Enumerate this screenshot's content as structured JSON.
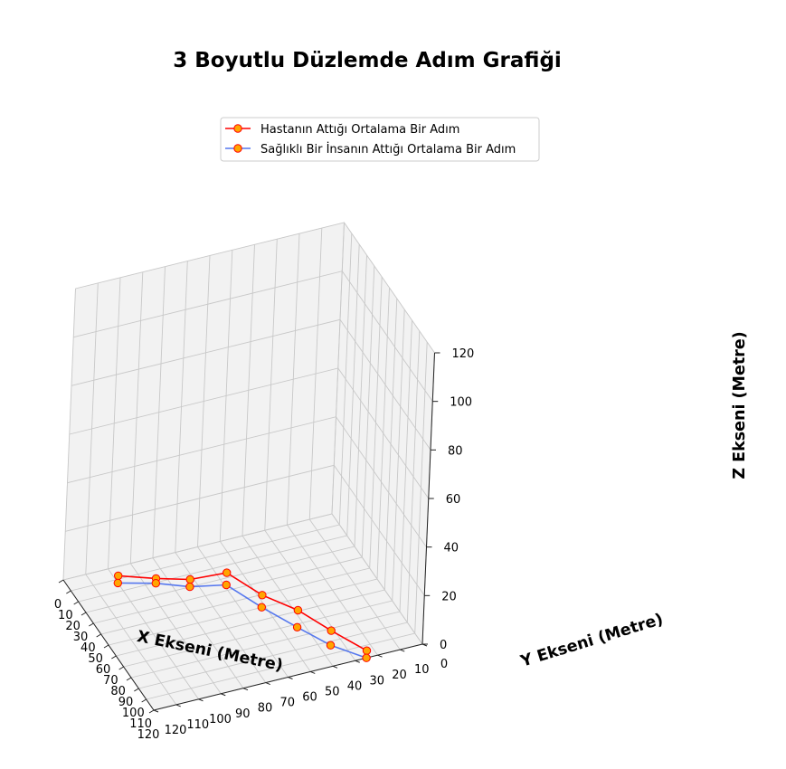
{
  "chart_data": {
    "type": "line3d",
    "title": "3 Boyutlu Düzlemde Adım Grafiği",
    "xlabel": "X Ekseni (Metre)",
    "ylabel": "Y Ekseni (Metre)",
    "zlabel": "Z Ekseni (Metre)",
    "xlim": [
      0,
      120
    ],
    "ylim": [
      0,
      120
    ],
    "zlim": [
      0,
      120
    ],
    "x_ticks": [
      "0",
      "10",
      "20",
      "30",
      "40",
      "50",
      "60",
      "70",
      "80",
      "90",
      "100",
      "110",
      "120"
    ],
    "y_ticks": [
      "0",
      "10",
      "20",
      "30",
      "40",
      "50",
      "60",
      "70",
      "80",
      "90",
      "100",
      "110",
      "120"
    ],
    "z_ticks": [
      "0",
      "20",
      "40",
      "60",
      "80",
      "100",
      "120"
    ],
    "grid": true,
    "legend_position": "top-center",
    "series": [
      {
        "name": "Hastanın Attığı Ortalama Bir Adım",
        "color": "#ff0000",
        "marker_face": "#ffa500",
        "marker_edge": "#ff0000",
        "points": [
          {
            "x": 13,
            "y": 100,
            "z": 3
          },
          {
            "x": 30,
            "y": 89,
            "z": 7
          },
          {
            "x": 45,
            "y": 79,
            "z": 11
          },
          {
            "x": 60,
            "y": 68,
            "z": 18
          },
          {
            "x": 75,
            "y": 57,
            "z": 13
          },
          {
            "x": 90,
            "y": 46,
            "z": 11
          },
          {
            "x": 105,
            "y": 36,
            "z": 7
          },
          {
            "x": 120,
            "y": 25,
            "z": 3
          }
        ]
      },
      {
        "name": "Sağlıklı Bir İnsanın Attığı Ortalama Bir Adım",
        "color": "#5577ee",
        "marker_face": "#ffa500",
        "marker_edge": "#ff0000",
        "points": [
          {
            "x": 13,
            "y": 100,
            "z": 0
          },
          {
            "x": 30,
            "y": 89,
            "z": 5
          },
          {
            "x": 45,
            "y": 79,
            "z": 8
          },
          {
            "x": 60,
            "y": 68,
            "z": 13
          },
          {
            "x": 75,
            "y": 57,
            "z": 8
          },
          {
            "x": 90,
            "y": 46,
            "z": 4
          },
          {
            "x": 105,
            "y": 36,
            "z": 1
          },
          {
            "x": 120,
            "y": 25,
            "z": 0
          }
        ]
      }
    ]
  }
}
